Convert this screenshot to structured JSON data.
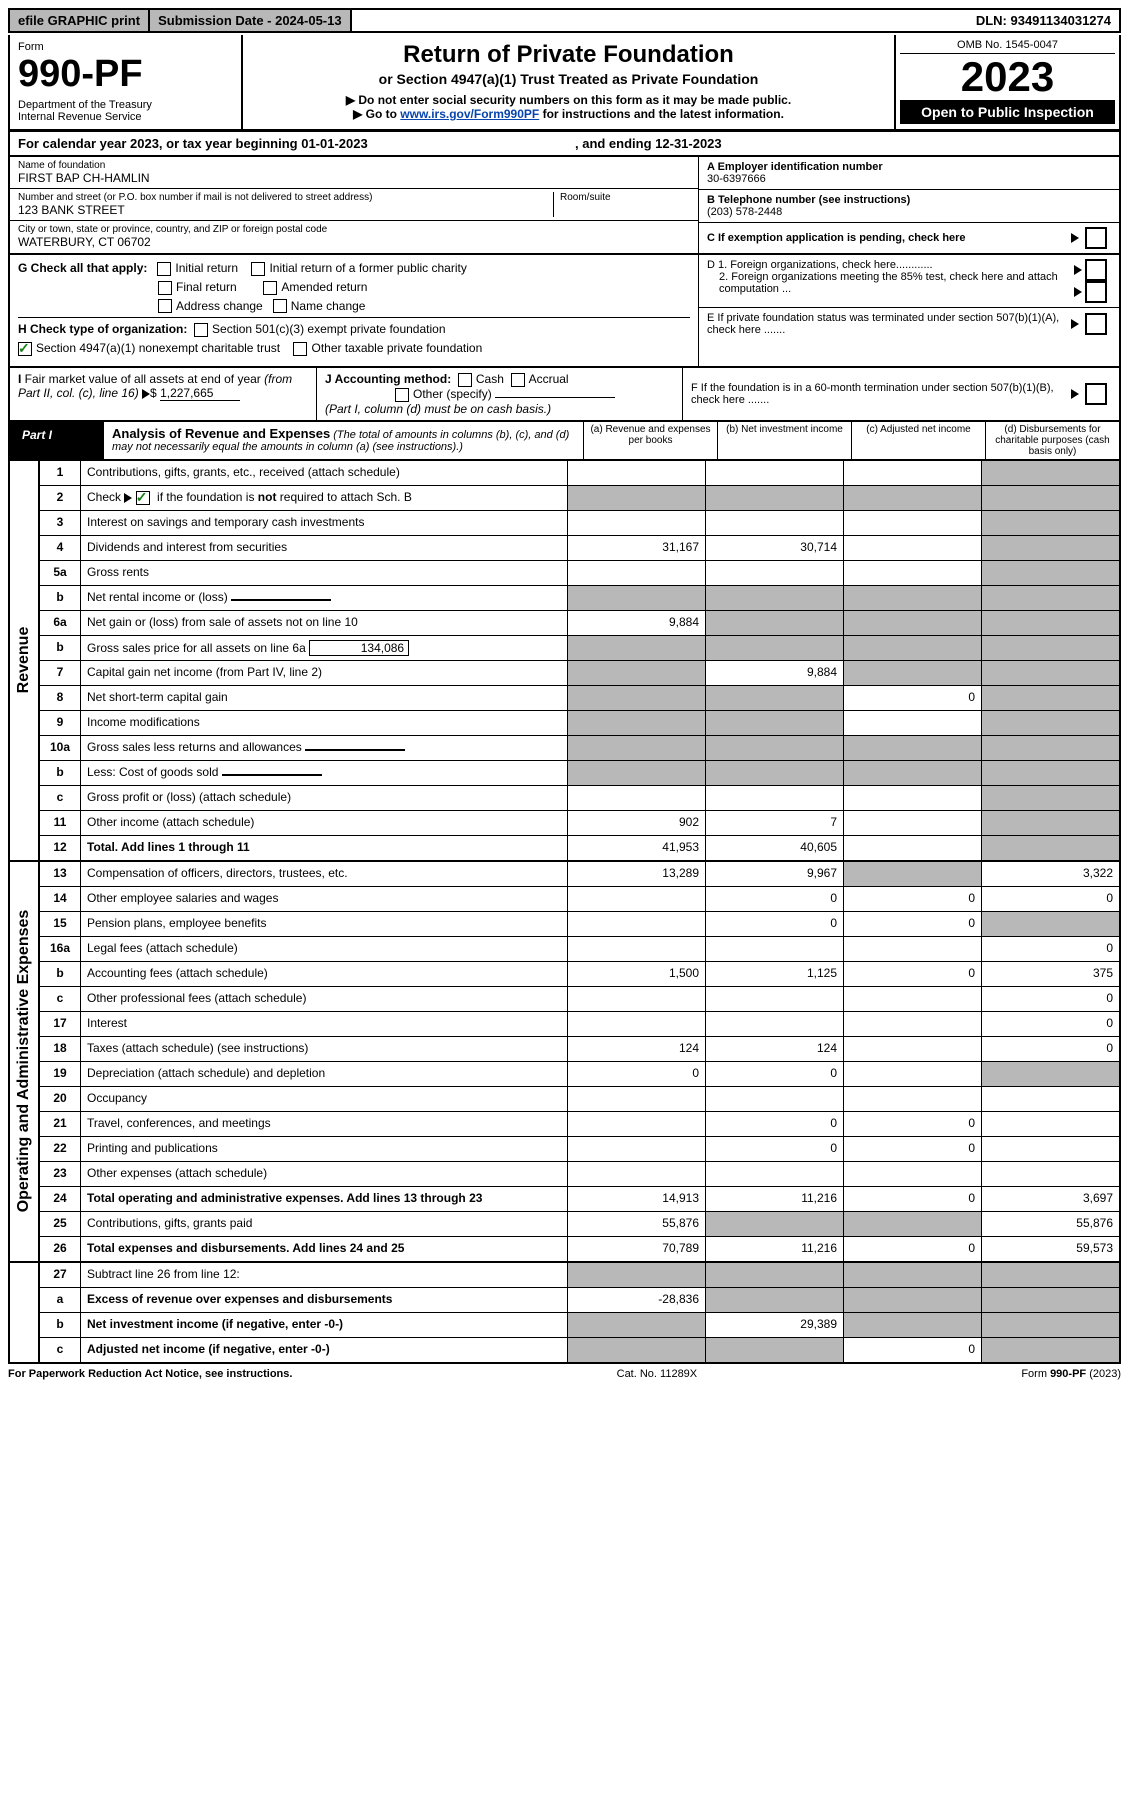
{
  "top": {
    "efile": "efile GRAPHIC print",
    "submission": "Submission Date - 2024-05-13",
    "dln": "DLN: 93491134031274"
  },
  "header": {
    "form_label": "Form",
    "form_number": "990-PF",
    "dept": "Department of the Treasury\nInternal Revenue Service",
    "title": "Return of Private Foundation",
    "subtitle": "or Section 4947(a)(1) Trust Treated as Private Foundation",
    "instr1": "▶ Do not enter social security numbers on this form as it may be made public.",
    "instr2_pre": "▶ Go to ",
    "instr2_link": "www.irs.gov/Form990PF",
    "instr2_post": " for instructions and the latest information.",
    "omb": "OMB No. 1545-0047",
    "year": "2023",
    "open": "Open to Public Inspection"
  },
  "cal": {
    "text": "For calendar year 2023, or tax year beginning 01-01-2023",
    "ending": ", and ending 12-31-2023"
  },
  "addr": {
    "name_lbl": "Name of foundation",
    "name_val": "FIRST BAP CH-HAMLIN",
    "street_lbl": "Number and street (or P.O. box number if mail is not delivered to street address)",
    "street_val": "123 BANK STREET",
    "room_lbl": "Room/suite",
    "city_lbl": "City or town, state or province, country, and ZIP or foreign postal code",
    "city_val": "WATERBURY, CT  06702",
    "a_lbl": "A Employer identification number",
    "a_val": "30-6397666",
    "b_lbl": "B Telephone number (see instructions)",
    "b_val": "(203) 578-2448",
    "c_lbl": "C If exemption application is pending, check here"
  },
  "g": {
    "label": "G Check all that apply:",
    "initial": "Initial return",
    "initial_former": "Initial return of a former public charity",
    "final": "Final return",
    "amended": "Amended return",
    "addr_change": "Address change",
    "name_change": "Name change"
  },
  "h": {
    "label": "H Check type of organization:",
    "s501": "Section 501(c)(3) exempt private foundation",
    "s4947": "Section 4947(a)(1) nonexempt charitable trust",
    "other_tax": "Other taxable private foundation"
  },
  "d": {
    "d1": "D 1. Foreign organizations, check here............",
    "d2": "2. Foreign organizations meeting the 85% test, check here and attach computation ..."
  },
  "e": "E   If private foundation status was terminated under section 507(b)(1)(A), check here .......",
  "i": {
    "text": "I Fair market value of all assets at end of year (from Part II, col. (c), line 16) ▶$ ",
    "val": "1,227,665"
  },
  "j": {
    "label": "J Accounting method:",
    "cash": "Cash",
    "accrual": "Accrual",
    "other": "Other (specify)",
    "note": "(Part I, column (d) must be on cash basis.)"
  },
  "f": "F   If the foundation is in a 60-month termination under section 507(b)(1)(B), check here .......",
  "part1": {
    "label": "Part I",
    "title": "Analysis of Revenue and Expenses",
    "note": "(The total of amounts in columns (b), (c), and (d) may not necessarily equal the amounts in column (a) (see instructions).)",
    "col_a": "(a) Revenue and expenses per books",
    "col_b": "(b) Net investment income",
    "col_c": "(c) Adjusted net income",
    "col_d": "(d) Disbursements for charitable purposes (cash basis only)"
  },
  "side_labels": {
    "revenue": "Revenue",
    "operating": "Operating and Administrative Expenses"
  },
  "lines": {
    "l1": {
      "n": "1",
      "d": "Contributions, gifts, grants, etc., received (attach schedule)"
    },
    "l2": {
      "n": "2",
      "d": "Check ▶ ☑ if the foundation is not required to attach Sch. B"
    },
    "l3": {
      "n": "3",
      "d": "Interest on savings and temporary cash investments"
    },
    "l4": {
      "n": "4",
      "d": "Dividends and interest from securities",
      "a": "31,167",
      "b": "30,714"
    },
    "l5a": {
      "n": "5a",
      "d": "Gross rents"
    },
    "l5b": {
      "n": "b",
      "d": "Net rental income or (loss)"
    },
    "l6a": {
      "n": "6a",
      "d": "Net gain or (loss) from sale of assets not on line 10",
      "a": "9,884"
    },
    "l6b": {
      "n": "b",
      "d": "Gross sales price for all assets on line 6a",
      "inline": "134,086"
    },
    "l7": {
      "n": "7",
      "d": "Capital gain net income (from Part IV, line 2)",
      "b": "9,884"
    },
    "l8": {
      "n": "8",
      "d": "Net short-term capital gain",
      "c": "0"
    },
    "l9": {
      "n": "9",
      "d": "Income modifications"
    },
    "l10a": {
      "n": "10a",
      "d": "Gross sales less returns and allowances"
    },
    "l10b": {
      "n": "b",
      "d": "Less: Cost of goods sold"
    },
    "l10c": {
      "n": "c",
      "d": "Gross profit or (loss) (attach schedule)"
    },
    "l11": {
      "n": "11",
      "d": "Other income (attach schedule)",
      "a": "902",
      "b": "7"
    },
    "l12": {
      "n": "12",
      "d": "Total. Add lines 1 through 11",
      "a": "41,953",
      "b": "40,605"
    },
    "l13": {
      "n": "13",
      "d": "Compensation of officers, directors, trustees, etc.",
      "a": "13,289",
      "b": "9,967",
      "d4": "3,322"
    },
    "l14": {
      "n": "14",
      "d": "Other employee salaries and wages",
      "b": "0",
      "c": "0",
      "d4": "0"
    },
    "l15": {
      "n": "15",
      "d": "Pension plans, employee benefits",
      "b": "0",
      "c": "0"
    },
    "l16a": {
      "n": "16a",
      "d": "Legal fees (attach schedule)",
      "d4": "0"
    },
    "l16b": {
      "n": "b",
      "d": "Accounting fees (attach schedule)",
      "a": "1,500",
      "b": "1,125",
      "c": "0",
      "d4": "375"
    },
    "l16c": {
      "n": "c",
      "d": "Other professional fees (attach schedule)",
      "d4": "0"
    },
    "l17": {
      "n": "17",
      "d": "Interest",
      "d4": "0"
    },
    "l18": {
      "n": "18",
      "d": "Taxes (attach schedule) (see instructions)",
      "a": "124",
      "b": "124",
      "d4": "0"
    },
    "l19": {
      "n": "19",
      "d": "Depreciation (attach schedule) and depletion",
      "a": "0",
      "b": "0"
    },
    "l20": {
      "n": "20",
      "d": "Occupancy"
    },
    "l21": {
      "n": "21",
      "d": "Travel, conferences, and meetings",
      "b": "0",
      "c": "0"
    },
    "l22": {
      "n": "22",
      "d": "Printing and publications",
      "b": "0",
      "c": "0"
    },
    "l23": {
      "n": "23",
      "d": "Other expenses (attach schedule)"
    },
    "l24": {
      "n": "24",
      "d": "Total operating and administrative expenses. Add lines 13 through 23",
      "a": "14,913",
      "b": "11,216",
      "c": "0",
      "d4": "3,697"
    },
    "l25": {
      "n": "25",
      "d": "Contributions, gifts, grants paid",
      "a": "55,876",
      "d4": "55,876"
    },
    "l26": {
      "n": "26",
      "d": "Total expenses and disbursements. Add lines 24 and 25",
      "a": "70,789",
      "b": "11,216",
      "c": "0",
      "d4": "59,573"
    },
    "l27": {
      "n": "27",
      "d": "Subtract line 26 from line 12:"
    },
    "l27a": {
      "n": "a",
      "d": "Excess of revenue over expenses and disbursements",
      "a": "-28,836"
    },
    "l27b": {
      "n": "b",
      "d": "Net investment income (if negative, enter -0-)",
      "b": "29,389"
    },
    "l27c": {
      "n": "c",
      "d": "Adjusted net income (if negative, enter -0-)",
      "c": "0"
    }
  },
  "footer": {
    "left": "For Paperwork Reduction Act Notice, see instructions.",
    "mid": "Cat. No. 11289X",
    "right": "Form 990-PF (2023)"
  }
}
